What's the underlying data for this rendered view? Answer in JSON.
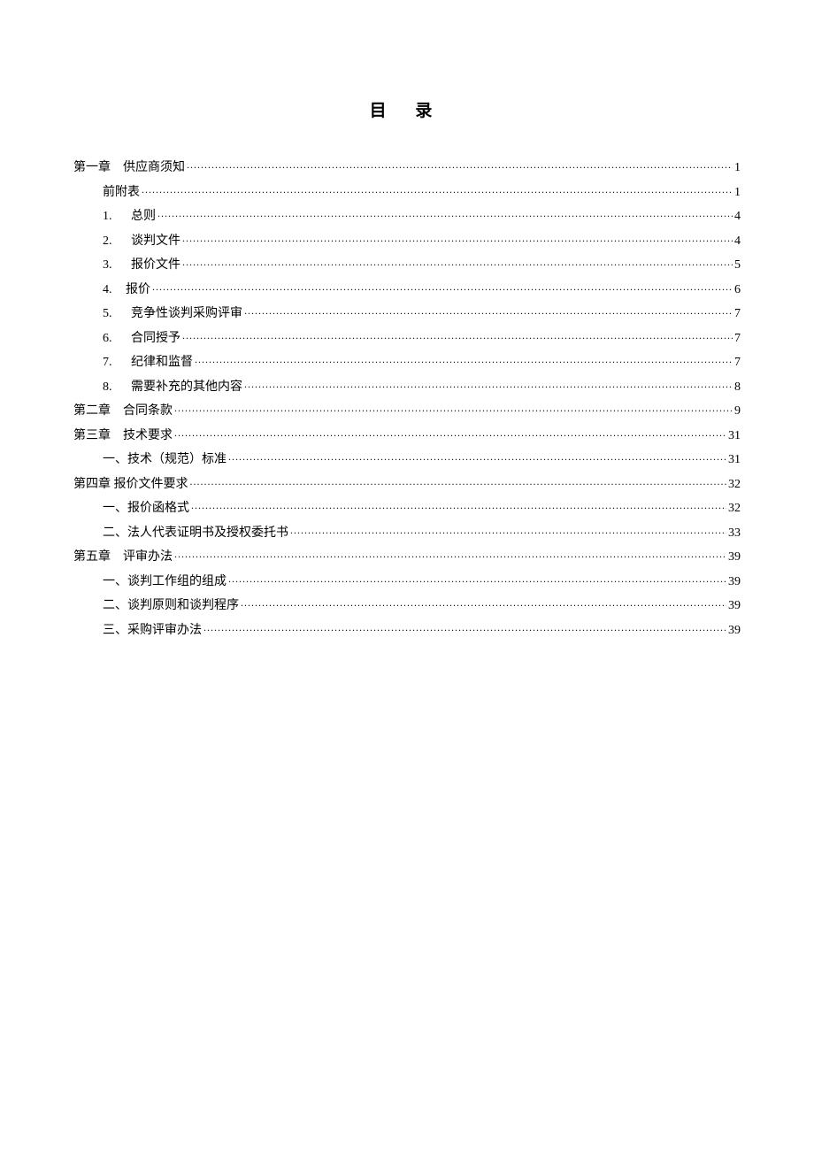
{
  "title": "目 录",
  "entries": [
    {
      "indent": 0,
      "label": "第一章　供应商须知",
      "page": "1"
    },
    {
      "indent": 1,
      "label": "前附表",
      "page": "1"
    },
    {
      "indent": 1,
      "num": "1.",
      "label": "总则",
      "page": "4"
    },
    {
      "indent": 1,
      "num": "2.",
      "label": "谈判文件",
      "page": "4"
    },
    {
      "indent": 1,
      "num": "3.",
      "label": "报价文件",
      "page": "5"
    },
    {
      "indent": 1,
      "num": "4.",
      "label": "报价",
      "tight": true,
      "page": "6"
    },
    {
      "indent": 1,
      "num": "5.",
      "label": "竞争性谈判采购评审",
      "page": "7"
    },
    {
      "indent": 1,
      "num": "6.",
      "label": "合同授予",
      "page": "7"
    },
    {
      "indent": 1,
      "num": "7.",
      "label": "纪律和监督",
      "page": "7"
    },
    {
      "indent": 1,
      "num": "8.",
      "label": "需要补充的其他内容",
      "page": "8"
    },
    {
      "indent": 0,
      "label": "第二章　合同条款",
      "page": "9"
    },
    {
      "indent": 0,
      "label": "第三章　技术要求",
      "page": "31"
    },
    {
      "indent": 1,
      "label": "一、技术（规范）标准",
      "page": "31"
    },
    {
      "indent": 0,
      "label": "第四章 报价文件要求",
      "page": "32"
    },
    {
      "indent": 1,
      "label": "一、报价函格式",
      "page": "32"
    },
    {
      "indent": 1,
      "label": "二、法人代表证明书及授权委托书",
      "page": "33"
    },
    {
      "indent": 0,
      "label": "第五章　评审办法",
      "page": "39"
    },
    {
      "indent": 1,
      "label": "一、谈判工作组的组成",
      "page": "39"
    },
    {
      "indent": 1,
      "label": "二、谈判原则和谈判程序",
      "page": "39"
    },
    {
      "indent": 1,
      "label": "三、采购评审办法",
      "page": "39"
    }
  ]
}
